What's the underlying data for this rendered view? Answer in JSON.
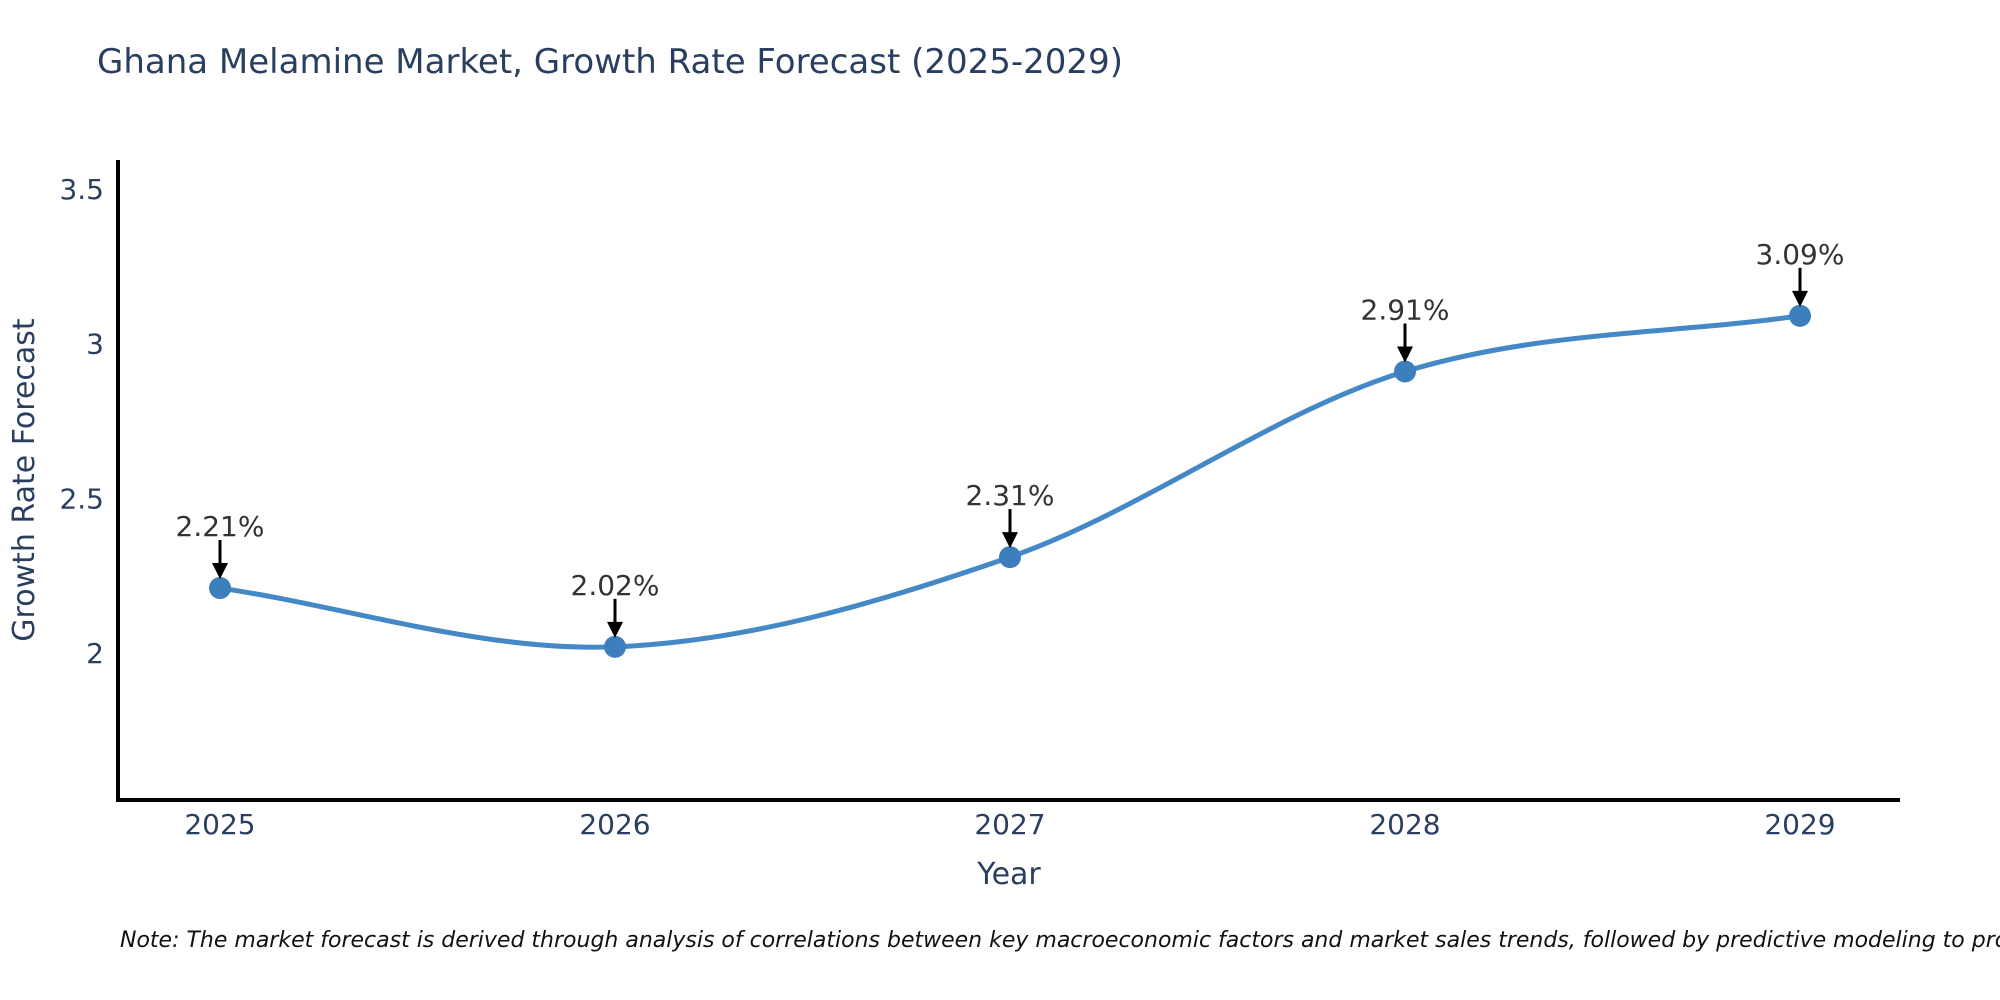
{
  "chart_data": {
    "type": "line",
    "title": "Ghana Melamine Market, Growth Rate Forecast (2025-2029)",
    "xlabel": "Year",
    "ylabel": "Growth Rate Forecast",
    "x": [
      2025,
      2026,
      2027,
      2028,
      2029
    ],
    "values": [
      2.21,
      2.02,
      2.31,
      2.91,
      3.09
    ],
    "point_labels": [
      "2.21%",
      "2.02%",
      "2.31%",
      "2.91%",
      "3.09%"
    ],
    "yticks": [
      3.5,
      3,
      2.5,
      2
    ],
    "ytick_labels": [
      "3.5",
      "3",
      "2.5",
      "2"
    ],
    "ylim": [
      1.53,
      3.59
    ],
    "line_shape": "spline",
    "grid": false,
    "legend_position": "none",
    "line_color": "#4488c6",
    "marker_color": "#3d7ebd",
    "axis_color": "#000000",
    "text_color": "#2a3f5f",
    "annotation_color": "#333333",
    "arrow_color": "#000000"
  },
  "note": "Note: The market forecast is derived through analysis of correlations between key macroeconomic factors and market sales trends, followed by predictive modeling to project future sales"
}
